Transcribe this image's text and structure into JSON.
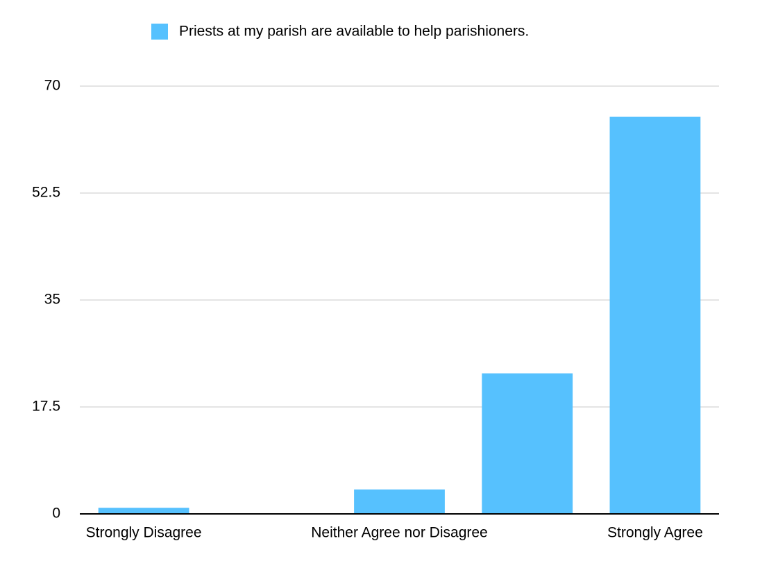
{
  "chart_data": {
    "type": "bar",
    "categories": [
      "Strongly Disagree",
      null,
      "Neither Agree nor Disagree",
      null,
      "Strongly Agree"
    ],
    "series": [
      {
        "name": "Priests at my parish are available to help parishioners.",
        "color": "#56c1fe",
        "values": [
          1,
          0,
          4,
          23,
          65
        ]
      }
    ],
    "ylim": [
      0,
      70
    ],
    "yticks": [
      0,
      17.5,
      35,
      52.5,
      70
    ],
    "grid": true,
    "legend": "top"
  }
}
